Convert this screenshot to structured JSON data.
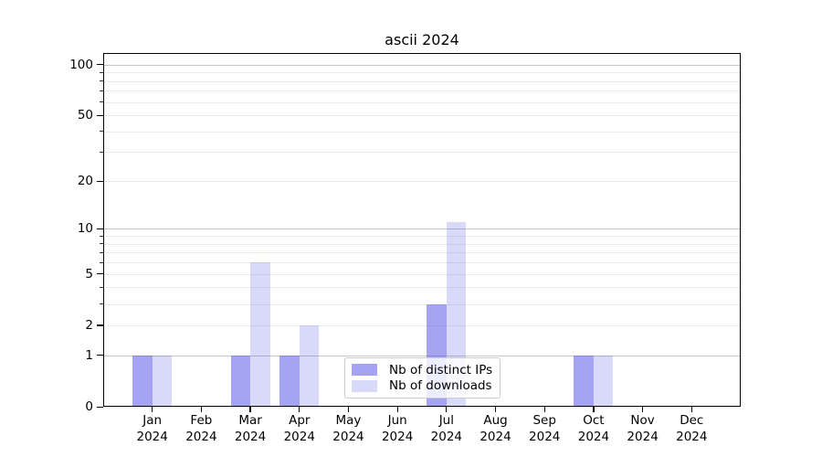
{
  "chart_data": {
    "type": "bar",
    "title": "ascii 2024",
    "categories": [
      "Jan 2024",
      "Feb 2024",
      "Mar 2024",
      "Apr 2024",
      "May 2024",
      "Jun 2024",
      "Jul 2024",
      "Aug 2024",
      "Sep 2024",
      "Oct 2024",
      "Nov 2024",
      "Dec 2024"
    ],
    "series": [
      {
        "name": "Nb of distinct IPs",
        "color": "rgba(80,80,230,0.52)",
        "values": [
          1,
          0,
          1,
          1,
          0,
          0,
          3,
          0,
          0,
          1,
          0,
          0
        ]
      },
      {
        "name": "Nb of downloads",
        "color": "rgba(80,80,230,0.22)",
        "values": [
          1,
          0,
          6,
          2,
          0,
          0,
          11,
          0,
          0,
          1,
          0,
          0
        ]
      }
    ],
    "y_axis": {
      "scale": "log1p",
      "range": [
        0,
        117
      ],
      "labeled_ticks": [
        0,
        1,
        2,
        5,
        10,
        20,
        50,
        100
      ],
      "major_gridlines": [
        1,
        10,
        100
      ],
      "minor_gridlines": [
        2,
        3,
        4,
        5,
        6,
        7,
        8,
        9,
        20,
        30,
        40,
        50,
        60,
        70,
        80,
        90
      ]
    },
    "x_axis": {
      "gridlines": false
    },
    "legend_position": "lower center",
    "grid": true,
    "background_color": "#ffffff",
    "spine_color": "#000000"
  }
}
